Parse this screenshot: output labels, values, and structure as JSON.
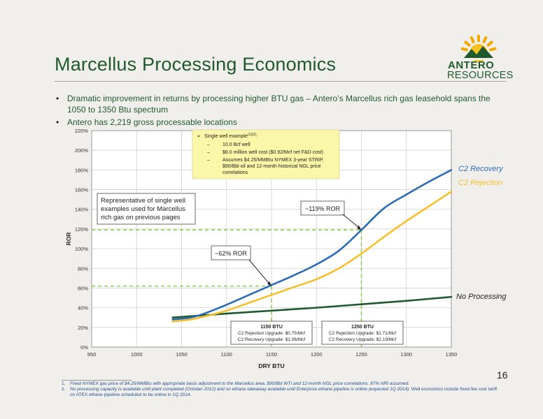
{
  "slide": {
    "title": "Marcellus Processing Economics",
    "page_number": "16",
    "logo": {
      "line1": "ANTERO",
      "line2": "RESOURCES"
    },
    "bullets": [
      "Dramatic improvement in returns by processing higher BTU gas – Antero’s Marcellus rich gas leasehold spans the 1050 to 1350 Btu spectrum",
      "Antero has 2,219 gross processable locations"
    ],
    "footnotes": [
      {
        "num": "1.",
        "text": "Fixed NYMEX gas price of $4.25/MMBtu with appropriate basis adjustment to the Marcellus area, $90/Bbl WTI and 12-month NGL price correlations. 87% NRI assumed."
      },
      {
        "num": "2.",
        "text_italic": "No processing capacity is available until plant completed (October 2012) and no ethane takeaway available until Enterprise ethane pipeline is online (expected 1Q 2014).",
        "text_plain": " Well economics include fixed fee cost tariff on ATEX ethane pipeline scheduled to be online in 1Q 2014."
      }
    ]
  },
  "chart_data": {
    "type": "line",
    "xlabel": "DRY BTU",
    "ylabel": "ROR",
    "xlim": [
      950,
      1350
    ],
    "ylim": [
      0,
      220
    ],
    "x_ticks": [
      "950",
      "1000",
      "1050",
      "1100",
      "1150",
      "1200",
      "1250",
      "1300",
      "1350"
    ],
    "y_ticks": [
      "0%",
      "20%",
      "40%",
      "60%",
      "80%",
      "100%",
      "120%",
      "140%",
      "160%",
      "180%",
      "200%",
      "220%"
    ],
    "grid": true,
    "colors": {
      "c2_recovery": "#2a6db5",
      "c2_rejection": "#f7bf2a",
      "no_processing": "#1f5a2d",
      "marker": "#8fcf4f"
    },
    "series": [
      {
        "name": "C2 Recovery",
        "key": "c2_recovery",
        "x": [
          1040,
          1060,
          1075,
          1100,
          1125,
          1150,
          1175,
          1200,
          1225,
          1250,
          1275,
          1300,
          1325,
          1350
        ],
        "y": [
          28,
          30,
          34,
          43,
          53,
          63,
          73,
          84,
          98,
          119,
          141,
          155,
          168,
          180
        ]
      },
      {
        "name": "C2 Rejection",
        "key": "c2_rejection",
        "x": [
          1040,
          1060,
          1075,
          1100,
          1125,
          1150,
          1175,
          1200,
          1225,
          1250,
          1275,
          1300,
          1325,
          1350
        ],
        "y": [
          26,
          28,
          31,
          37,
          45,
          53,
          61,
          69,
          80,
          95,
          112,
          128,
          143,
          158
        ]
      },
      {
        "name": "No Processing",
        "key": "no_processing",
        "x": [
          1040,
          1100,
          1150,
          1200,
          1250,
          1300,
          1350
        ],
        "y": [
          30,
          34,
          37,
          40,
          43.5,
          47,
          51
        ]
      }
    ],
    "reference_points": [
      {
        "x": 1150,
        "y": 62,
        "label": "~62% ROR"
      },
      {
        "x": 1250,
        "y": 119,
        "label": "~119% ROR"
      }
    ],
    "callout_box": {
      "heading": "Single well example",
      "superscript": "(1)(2)",
      "items": [
        "10.0 Bcf well",
        "$8.0 million well cost ($0.92/Mcf net F&D cost)",
        "Assumes $4.25/MMBtu NYMEX 3-year STRIP, $90/Bbl oil and 12-month historical NGL price correlations"
      ]
    },
    "note_box": "Representative of single well examples used for Marcellus rich gas on previous pages",
    "btu_boxes": [
      {
        "title": "1150 BTU",
        "lines": [
          "C2 Rejection Upgrade: $0.75/Mcf",
          "C2 Recovery Upgrade: $1.06/Mcf"
        ]
      },
      {
        "title": "1250 BTU",
        "lines": [
          "C2 Rejection Upgrade: $1.71/Mcf",
          "C2 Recovery Upgrade: $2.19/Mcf"
        ]
      }
    ]
  }
}
